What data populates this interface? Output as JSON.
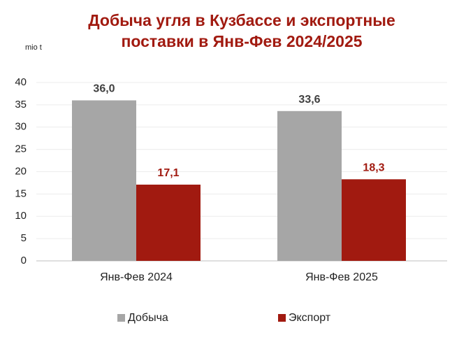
{
  "chart_data": {
    "type": "bar",
    "title": "Добыча угля в Кузбассе и экспортные поставки в Янв-Фев 2024/2025",
    "y_unit_label": "mio t",
    "categories": [
      "Янв-Фев 2024",
      "Янв-Фев 2025"
    ],
    "series": [
      {
        "name": "Добыча",
        "color": "#a6a6a6",
        "values": [
          36.0,
          33.6
        ],
        "value_labels": [
          "36,0",
          "33,6"
        ]
      },
      {
        "name": "Экспорт",
        "color": "#a11a10",
        "values": [
          17.1,
          18.3
        ],
        "value_labels": [
          "17,1",
          "18,3"
        ]
      }
    ],
    "ylim": [
      0,
      40
    ],
    "yticks": [
      0,
      5,
      10,
      15,
      20,
      25,
      30,
      35,
      40
    ],
    "grid": true,
    "legend": "bottom"
  }
}
